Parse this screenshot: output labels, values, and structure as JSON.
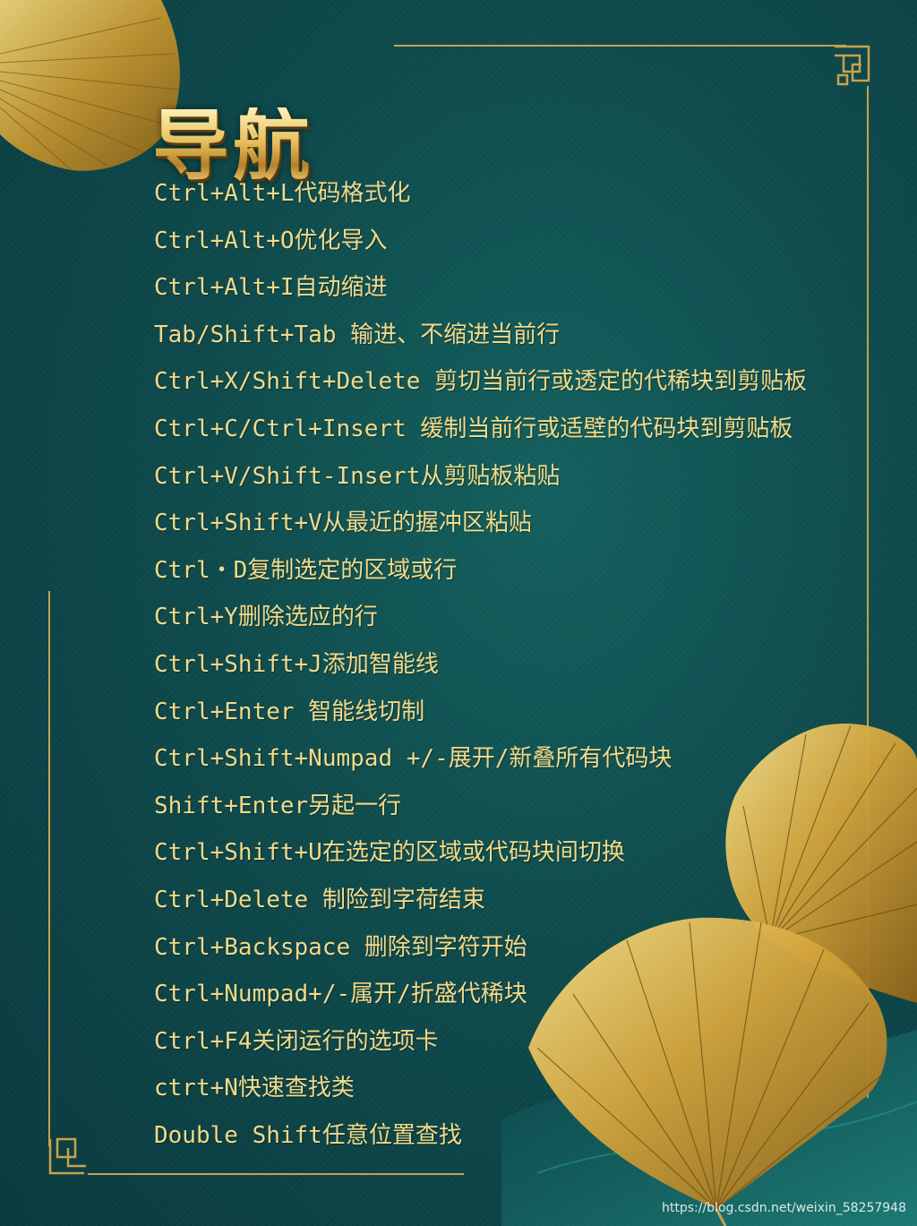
{
  "title": "导航",
  "shortcuts": [
    "Ctrl+Alt+L代码格式化",
    "Ctrl+Alt+O优化导入",
    "Ctrl+Alt+I自动缩进",
    "Tab/Shift+Tab 输进、不缩进当前行",
    "Ctrl+X/Shift+Delete 剪切当前行或透定的代稀块到剪贴板",
    "Ctrl+C/Ctrl+Insert 缓制当前行或适壁的代码块到剪贴板",
    "Ctrl+V/Shift-Insert从剪贴板粘贴",
    "Ctrl+Shift+V从最近的握冲区粘贴",
    "Ctrl・D复制选定的区域或行",
    "Ctrl+Y删除选应的行",
    "Ctrl+Shift+J添加智能线",
    "Ctrl+Enter 智能线切制",
    "Ctrl+Shift+Numpad +/-展开/新叠所有代码块",
    "Shift+Enter另起一行",
    "Ctrl+Shift+U在选定的区域或代码块间切换",
    "Ctrl+Delete 制险到字荷结束",
    "Ctrl+Backspace 删除到字符开始",
    "Ctrl+Numpad+/-属开/折盛代稀块",
    "Ctrl+F4关闭运行的选项卡",
    "ctrt+N快速查找类",
    "Double Shift任意位置查找"
  ],
  "watermark": "https://blog.csdn.net/weixin_58257948",
  "colors": {
    "background": "#0d4a4c",
    "gold": "#c9a24a",
    "text": "#f2d98a"
  },
  "icons": [
    "ginkgo-leaf-icon",
    "corner-knot-icon"
  ]
}
